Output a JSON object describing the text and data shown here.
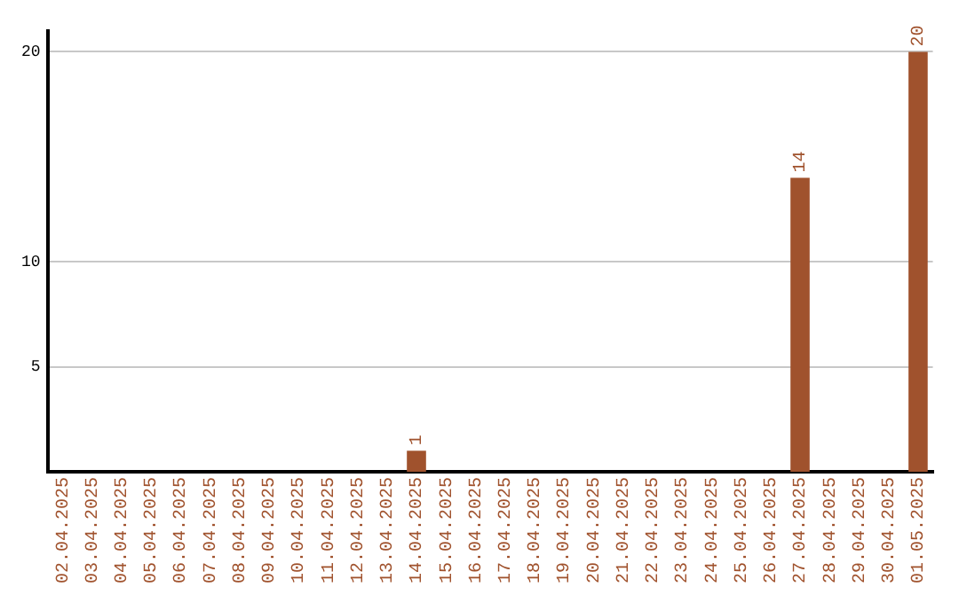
{
  "chart_data": {
    "type": "bar",
    "categories": [
      "02.04.2025",
      "03.04.2025",
      "04.04.2025",
      "05.04.2025",
      "06.04.2025",
      "07.04.2025",
      "08.04.2025",
      "09.04.2025",
      "10.04.2025",
      "11.04.2025",
      "12.04.2025",
      "13.04.2025",
      "14.04.2025",
      "15.04.2025",
      "16.04.2025",
      "17.04.2025",
      "18.04.2025",
      "19.04.2025",
      "20.04.2025",
      "21.04.2025",
      "22.04.2025",
      "23.04.2025",
      "24.04.2025",
      "25.04.2025",
      "26.04.2025",
      "27.04.2025",
      "28.04.2025",
      "29.04.2025",
      "30.04.2025",
      "01.05.2025"
    ],
    "values": [
      0,
      0,
      0,
      0,
      0,
      0,
      0,
      0,
      0,
      0,
      0,
      0,
      1,
      0,
      0,
      0,
      0,
      0,
      0,
      0,
      0,
      0,
      0,
      0,
      0,
      14,
      0,
      0,
      0,
      20
    ],
    "value_labels": [
      null,
      null,
      null,
      null,
      null,
      null,
      null,
      null,
      null,
      null,
      null,
      null,
      "1",
      null,
      null,
      null,
      null,
      null,
      null,
      null,
      null,
      null,
      null,
      null,
      null,
      "14",
      null,
      null,
      null,
      "20"
    ],
    "color": "#a0522d",
    "ylim": [
      0,
      21
    ],
    "yticks": [
      5,
      10,
      20
    ],
    "grid": "y",
    "legend": false
  }
}
